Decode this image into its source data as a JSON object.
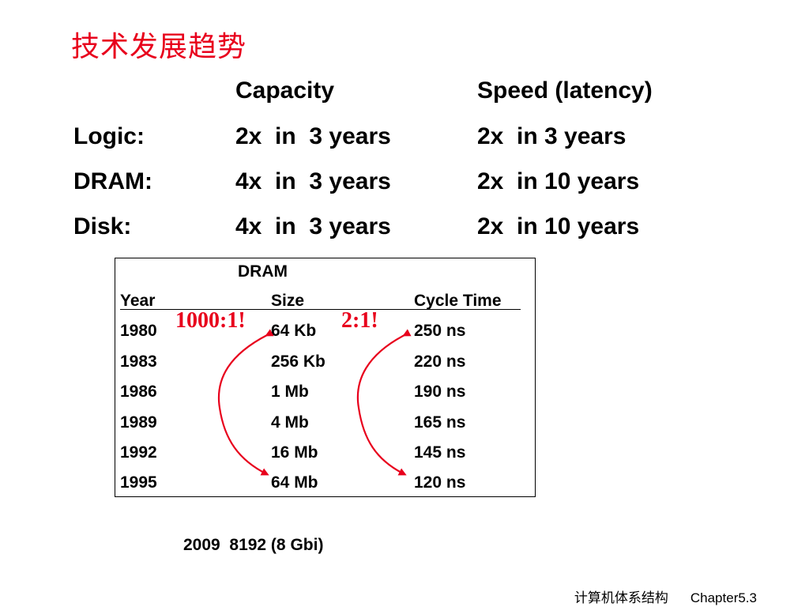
{
  "slide": {
    "title": "技术发展趋势"
  },
  "trend_table": {
    "headers": [
      "Capacity",
      "Speed (latency)"
    ],
    "rows": [
      {
        "label": "Logic:",
        "capacity": "2x  in  3 years",
        "speed": "2x  in 3 years"
      },
      {
        "label": "DRAM:",
        "capacity": "4x  in  3 years",
        "speed": "2x  in 10 years"
      },
      {
        "label": "Disk:",
        "capacity": "4x  in  3 years",
        "speed": "2x  in 10 years"
      }
    ]
  },
  "dram_table": {
    "title": "DRAM",
    "columns": [
      "Year",
      "Size",
      "Cycle Time"
    ],
    "rows": [
      [
        "1980",
        "64 Kb",
        "250 ns"
      ],
      [
        "1983",
        "256 Kb",
        "220 ns"
      ],
      [
        "1986",
        "1 Mb",
        "190 ns"
      ],
      [
        "1989",
        "4 Mb",
        "165 ns"
      ],
      [
        "1992",
        "16 Mb",
        "145 ns"
      ],
      [
        "1995",
        "64 Mb",
        "120 ns"
      ]
    ]
  },
  "annotations": {
    "size_ratio": "1000:1!",
    "cycle_ratio": "2:1!",
    "color": "#e8001c"
  },
  "note": "2009  8192 (8 Gbi)",
  "footer": {
    "course": "计算机体系结构",
    "chapter": "Chapter5.3"
  },
  "colors": {
    "title": "#e8001c",
    "text": "#000000",
    "background": "#ffffff"
  }
}
